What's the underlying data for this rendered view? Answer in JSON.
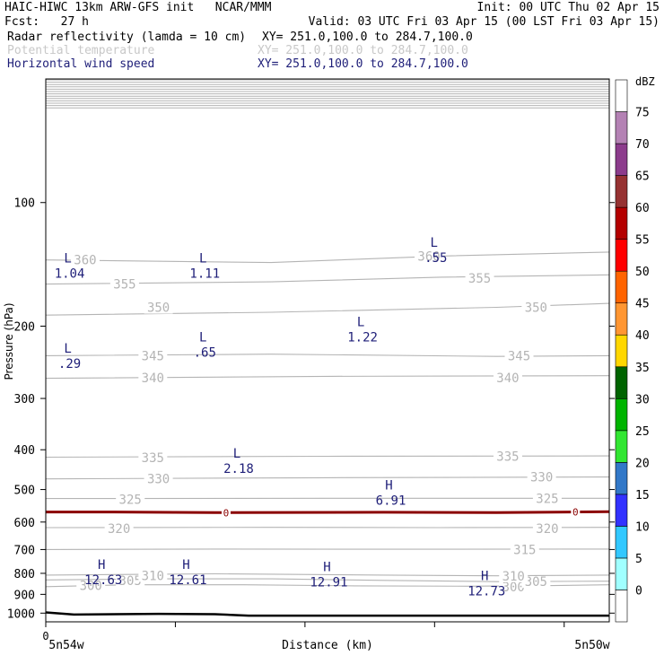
{
  "header": {
    "line1_left": "HAIC-HIWC 13km ARW-GFS init   NCAR/MMM",
    "line1_right": "Init: 00 UTC Thu 02 Apr 15",
    "fcst_label": "Fcst:   27 h",
    "valid": "Valid: 03 UTC Fri 03 Apr 15 (00 LST Fri 03 Apr 15)",
    "field1": "Radar reflectivity (lamda = 10 cm)",
    "field1_xy": "XY= 251.0,100.0 to 284.7,100.0",
    "field2": "Potential temperature",
    "field2_xy": "XY= 251.0,100.0 to 284.7,100.0",
    "field3": "Horizontal wind speed",
    "field3_xy": "XY= 251.0,100.0 to 284.7,100.0"
  },
  "colors": {
    "theta": "#b4b4b4",
    "wind": "#1e1e78",
    "freezing": "#8b0000",
    "terrain": "#000000"
  },
  "chart_data": {
    "type": "cross-section",
    "ylabel": "Pressure (hPa)",
    "xlabel": "Distance (km)",
    "x_left_label": "5n54w",
    "x_right_label": "5n50w",
    "x_zero_label": "0",
    "y_scale": "log",
    "ylim": [
      1050,
      50
    ],
    "y_ticks": [
      100,
      200,
      300,
      400,
      500,
      600,
      700,
      800,
      900,
      1000
    ],
    "x_range": [
      0,
      100
    ],
    "theta_contours": [
      {
        "value": 300,
        "points": [
          [
            0,
            862
          ],
          [
            15,
            853
          ],
          [
            35,
            853
          ],
          [
            55,
            858
          ],
          [
            75,
            860
          ],
          [
            90,
            857
          ],
          [
            100,
            853
          ]
        ],
        "labels": [
          [
            8,
            857
          ],
          [
            83,
            862
          ]
        ]
      },
      {
        "value": 305,
        "points": [
          [
            0,
            830
          ],
          [
            20,
            825
          ],
          [
            40,
            825
          ],
          [
            60,
            832
          ],
          [
            80,
            838
          ],
          [
            100,
            836
          ]
        ],
        "labels": [
          [
            15,
            832
          ],
          [
            87,
            838
          ]
        ]
      },
      {
        "value": 310,
        "points": [
          [
            0,
            808
          ],
          [
            30,
            802
          ],
          [
            60,
            808
          ],
          [
            80,
            811
          ],
          [
            100,
            808
          ]
        ],
        "labels": [
          [
            19,
            810
          ],
          [
            83,
            812
          ]
        ]
      },
      {
        "value": 315,
        "points": [
          [
            0,
            700
          ],
          [
            30,
            698
          ],
          [
            60,
            699
          ],
          [
            100,
            698
          ]
        ],
        "labels": [
          [
            85,
            700
          ]
        ]
      },
      {
        "value": 320,
        "points": [
          [
            0,
            619
          ],
          [
            40,
            618
          ],
          [
            70,
            619
          ],
          [
            100,
            618
          ]
        ],
        "labels": [
          [
            13,
            622
          ],
          [
            89,
            622
          ]
        ]
      },
      {
        "value": 325,
        "points": [
          [
            0,
            526
          ],
          [
            50,
            525
          ],
          [
            100,
            525
          ]
        ],
        "labels": [
          [
            15,
            528
          ],
          [
            89,
            526
          ]
        ]
      },
      {
        "value": 330,
        "points": [
          [
            0,
            471
          ],
          [
            50,
            468
          ],
          [
            100,
            466
          ]
        ],
        "labels": [
          [
            20,
            470
          ],
          [
            88,
            466
          ]
        ]
      },
      {
        "value": 335,
        "points": [
          [
            0,
            417
          ],
          [
            50,
            415
          ],
          [
            100,
            414
          ]
        ],
        "labels": [
          [
            19,
            418
          ],
          [
            82,
            415
          ]
        ]
      },
      {
        "value": 340,
        "points": [
          [
            0,
            268
          ],
          [
            50,
            265
          ],
          [
            100,
            264
          ]
        ],
        "labels": [
          [
            19,
            267
          ],
          [
            82,
            267
          ]
        ]
      },
      {
        "value": 345,
        "points": [
          [
            0,
            236
          ],
          [
            40,
            234
          ],
          [
            80,
            237
          ],
          [
            100,
            236
          ]
        ],
        "labels": [
          [
            19,
            236
          ],
          [
            84,
            236
          ]
        ]
      },
      {
        "value": 350,
        "points": [
          [
            0,
            188
          ],
          [
            40,
            185
          ],
          [
            80,
            180
          ],
          [
            100,
            176
          ]
        ],
        "labels": [
          [
            20,
            180
          ],
          [
            87,
            180
          ]
        ]
      },
      {
        "value": 355,
        "points": [
          [
            0,
            158
          ],
          [
            40,
            156
          ],
          [
            70,
            152
          ],
          [
            100,
            150
          ]
        ],
        "labels": [
          [
            14,
            158
          ],
          [
            77,
            153
          ]
        ]
      },
      {
        "value": 360,
        "points": [
          [
            0,
            138
          ],
          [
            40,
            140
          ],
          [
            70,
            135
          ],
          [
            100,
            132
          ]
        ],
        "labels": [
          [
            7,
            138
          ],
          [
            68,
            135
          ]
        ]
      }
    ],
    "freezing_level": {
      "value": 0,
      "points": [
        [
          0,
          567
        ],
        [
          12,
          567
        ],
        [
          30,
          569
        ],
        [
          60,
          568
        ],
        [
          80,
          569
        ],
        [
          100,
          566
        ]
      ],
      "labels": [
        [
          32,
          569
        ],
        [
          94,
          567
        ]
      ]
    },
    "terrain": {
      "points": [
        [
          0,
          996
        ],
        [
          5,
          1008
        ],
        [
          20,
          1004
        ],
        [
          30,
          1006
        ],
        [
          36,
          1014
        ],
        [
          100,
          1014
        ]
      ]
    },
    "wind_extrema": [
      {
        "type": "L",
        "value": "1.04",
        "x": 2,
        "p": 140
      },
      {
        "type": "L",
        "value": "1.11",
        "x": 26,
        "p": 140
      },
      {
        "type": "L",
        "value": ".55",
        "x": 67,
        "p": 128
      },
      {
        "type": "L",
        "value": ".29",
        "x": 2,
        "p": 232
      },
      {
        "type": "L",
        "value": ".65",
        "x": 26,
        "p": 218
      },
      {
        "type": "L",
        "value": "1.22",
        "x": 54,
        "p": 200
      },
      {
        "type": "L",
        "value": "2.18",
        "x": 32,
        "p": 418
      },
      {
        "type": "H",
        "value": "6.91",
        "x": 59,
        "p": 500
      },
      {
        "type": "H",
        "value": "12.63",
        "x": 8,
        "p": 780
      },
      {
        "type": "H",
        "value": "12.61",
        "x": 23,
        "p": 780
      },
      {
        "type": "H",
        "value": "12.91",
        "x": 48,
        "p": 790
      },
      {
        "type": "H",
        "value": "12.73",
        "x": 76,
        "p": 830
      }
    ],
    "colorbar": {
      "unit": "dBZ",
      "levels": [
        "0",
        "5",
        "10",
        "15",
        "20",
        "25",
        "30",
        "35",
        "40",
        "45",
        "50",
        "55",
        "60",
        "65",
        "70",
        "75"
      ],
      "colors": [
        "#ffffff",
        "#a0ffff",
        "#32c8ff",
        "#3232ff",
        "#3278c8",
        "#32e632",
        "#00b400",
        "#006400",
        "#ffd700",
        "#ff9632",
        "#ff6400",
        "#ff0000",
        "#b40000",
        "#963232",
        "#8c3c8c",
        "#b482b4",
        "#ffffff"
      ]
    }
  }
}
